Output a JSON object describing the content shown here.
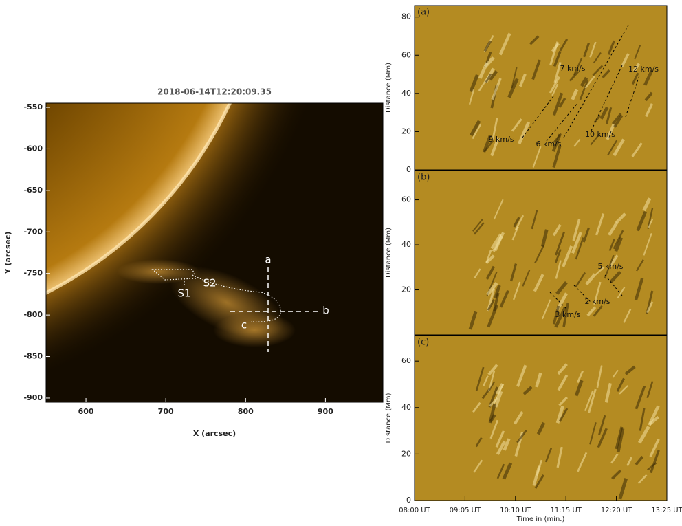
{
  "chart_data": [
    {
      "type": "image",
      "title": "2018-06-14T12:20:09.35",
      "xlabel": "X (arcsec)",
      "ylabel": "Y (arcsec)",
      "xlim": [
        550,
        972
      ],
      "ylim": [
        -905,
        -545
      ],
      "xticks": [
        600,
        700,
        800,
        900
      ],
      "yticks": [
        -900,
        -850,
        -800,
        -750,
        -700,
        -650,
        -600,
        -550
      ],
      "annotations": [
        "a",
        "b",
        "c",
        "S1",
        "S2"
      ]
    },
    {
      "type": "image",
      "label": "(a)",
      "ylabel": "Distance (Mm)",
      "xlim": [
        0,
        325
      ],
      "ylim": [
        0,
        86
      ],
      "yticks": [
        0,
        20,
        40,
        60,
        80
      ],
      "annotations": [
        "7 km/s",
        "12 km/s",
        "9 km/s",
        "6 km/s",
        "10 km/s"
      ]
    },
    {
      "type": "image",
      "label": "(b)",
      "ylabel": "Distance (Mm)",
      "xlim": [
        0,
        325
      ],
      "ylim": [
        0,
        73
      ],
      "yticks": [
        20,
        40,
        60
      ],
      "annotations": [
        "5 km/s",
        "2 km/s",
        "3 km/s"
      ]
    },
    {
      "type": "image",
      "label": "(c)",
      "ylabel": "Distance (Mm)",
      "xlabel": "Time in (min.)",
      "xlim": [
        0,
        325
      ],
      "ylim": [
        0,
        71
      ],
      "xticks": [
        {
          "value": 0,
          "label": "08:00 UT"
        },
        {
          "value": 65,
          "label": "09:05 UT"
        },
        {
          "value": 130,
          "label": "10:10 UT"
        },
        {
          "value": 195,
          "label": "11:15 UT"
        },
        {
          "value": 260,
          "label": "12:20 UT"
        },
        {
          "value": 325,
          "label": "13:25 UT"
        }
      ],
      "yticks": [
        0,
        20,
        40,
        60
      ]
    }
  ]
}
